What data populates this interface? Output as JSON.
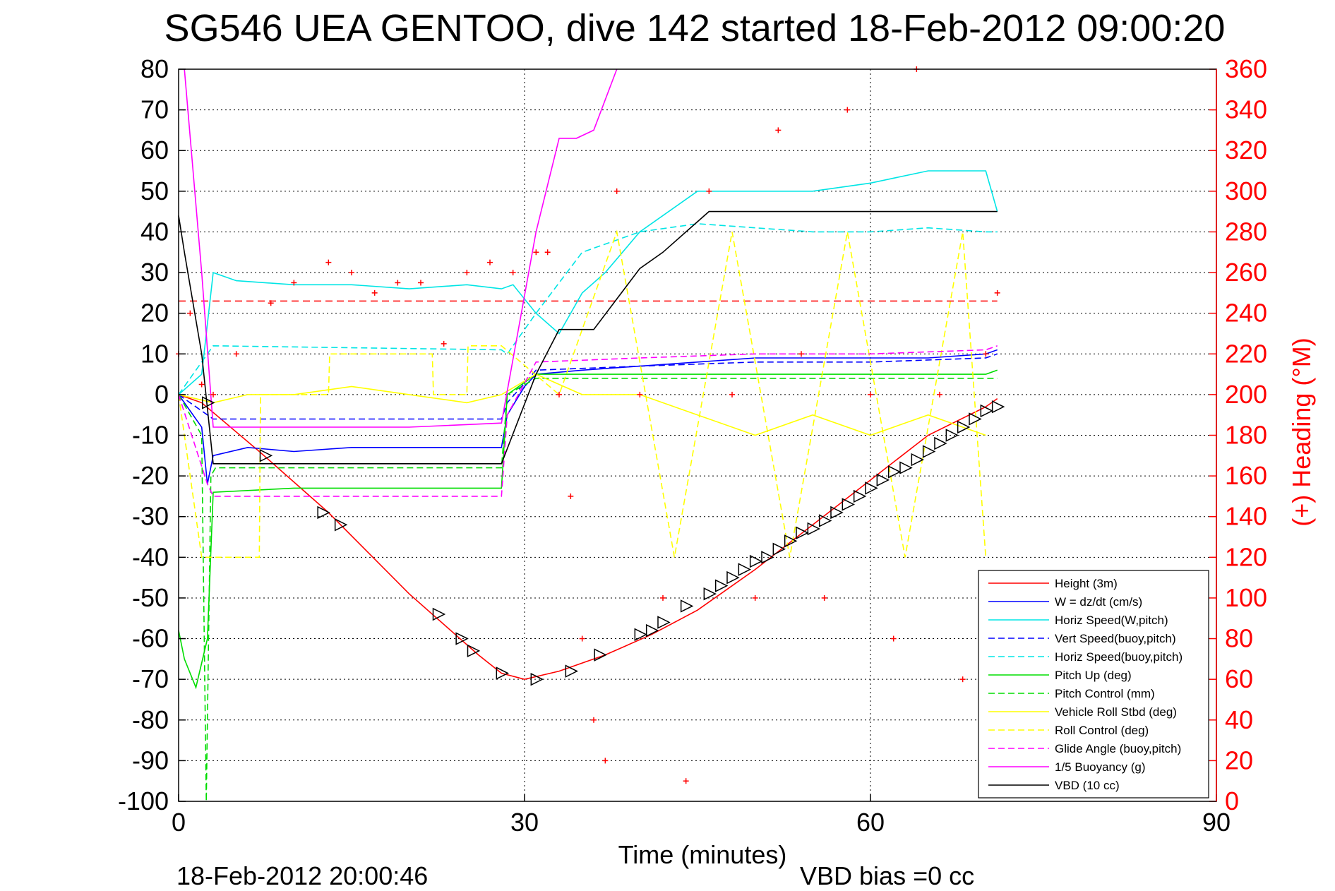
{
  "chart_data": {
    "type": "line",
    "title": "SG546 UEA GENTOO, dive 142 started 18-Feb-2012 09:00:20",
    "xlabel": "Time (minutes)",
    "ylabel_right": "(+) Heading (°M)",
    "xlim": [
      0,
      90
    ],
    "ylim": [
      -100,
      80
    ],
    "ylim_right": [
      0,
      360
    ],
    "x_ticks": [
      "0",
      "30",
      "60",
      "90"
    ],
    "y_ticks": [
      "80",
      "70",
      "60",
      "50",
      "40",
      "30",
      "20",
      "10",
      "0",
      "-10",
      "-20",
      "-30",
      "-40",
      "-50",
      "-60",
      "-70",
      "-80",
      "-90",
      "-100"
    ],
    "y_ticks_right": [
      "360",
      "340",
      "320",
      "300",
      "280",
      "260",
      "240",
      "220",
      "200",
      "180",
      "160",
      "140",
      "120",
      "100",
      "80",
      "60",
      "40",
      "20",
      "0"
    ],
    "grid": true,
    "legend_position": "bottom-right",
    "footer_left": "18-Feb-2012 20:00:46",
    "footer_right": "VBD bias =0 cc",
    "series": [
      {
        "name": "Height (3m)",
        "color": "#ff0000",
        "style": "solid",
        "x": [
          0,
          2,
          7,
          13,
          20,
          26,
          28,
          30,
          33,
          37,
          41,
          45,
          50,
          55,
          60,
          65,
          70,
          71
        ],
        "y": [
          0,
          -2,
          -14,
          -29,
          -49,
          -64,
          -68.5,
          -70,
          -68,
          -64,
          -59,
          -53,
          -43,
          -32,
          -21,
          -10,
          -3,
          -1
        ]
      },
      {
        "name": "W = dz/dt (cm/s)",
        "color": "#0000ff",
        "style": "solid",
        "x": [
          0,
          2,
          2.5,
          3,
          6,
          10,
          15,
          20,
          25,
          28,
          28.5,
          30,
          31,
          35,
          40,
          45,
          50,
          55,
          60,
          65,
          70,
          71
        ],
        "y": [
          0,
          -8,
          -22,
          -15,
          -13,
          -14,
          -13,
          -13,
          -13,
          -13,
          -5,
          2,
          5,
          6,
          7,
          8,
          9,
          9,
          9,
          9,
          10,
          11
        ]
      },
      {
        "name": "Horiz Speed(W,pitch)",
        "color": "#00e5e5",
        "style": "solid",
        "x": [
          0,
          2,
          3,
          5,
          10,
          15,
          20,
          25,
          28,
          29,
          31,
          33,
          35,
          37,
          40,
          45,
          50,
          55,
          60,
          65,
          70,
          71
        ],
        "y": [
          0,
          5,
          30,
          28,
          27,
          27,
          26,
          27,
          26,
          27,
          20,
          15,
          25,
          30,
          40,
          50,
          50,
          50,
          52,
          55,
          55,
          45
        ]
      },
      {
        "name": "Vert Speed(buoy,pitch)",
        "color": "#0000ff",
        "style": "dashed",
        "x": [
          0,
          2.5,
          3,
          28,
          28.5,
          31,
          40,
          50,
          60,
          70,
          71
        ],
        "y": [
          0,
          -5,
          -6,
          -6,
          -2,
          6,
          7,
          8,
          8,
          9,
          10
        ]
      },
      {
        "name": "Horiz Speed(buoy,pitch)",
        "color": "#00e5e5",
        "style": "dashed",
        "x": [
          0,
          2.5,
          3,
          28,
          28.5,
          31,
          35,
          40,
          45,
          50,
          55,
          60,
          65,
          70,
          71
        ],
        "y": [
          0,
          10,
          12,
          11,
          10,
          20,
          35,
          40,
          42,
          41,
          40,
          40,
          41,
          40,
          40
        ]
      },
      {
        "name": "Pitch Up (deg)",
        "color": "#00dd00",
        "style": "solid",
        "x": [
          0,
          0.5,
          1.5,
          2.5,
          3,
          10,
          20,
          28,
          28.5,
          31,
          40,
          50,
          60,
          70,
          71
        ],
        "y": [
          -58,
          -65,
          -72,
          -60,
          -24,
          -23,
          -23,
          -23,
          0,
          5,
          5,
          5,
          5,
          5,
          6
        ]
      },
      {
        "name": "Pitch Control (mm)",
        "color": "#00dd00",
        "style": "dashed",
        "x": [
          0,
          2,
          2.4,
          2.8,
          3.2,
          28,
          28.5,
          31,
          71
        ],
        "y": [
          0,
          -10,
          -100,
          -20,
          -18,
          -18,
          0,
          4,
          4
        ]
      },
      {
        "name": "Vehicle Roll Stbd (deg)",
        "color": "#ffff00",
        "style": "solid",
        "x": [
          0,
          3,
          6,
          10,
          15,
          20,
          25,
          28,
          31,
          35,
          40,
          45,
          50,
          55,
          60,
          65,
          70
        ],
        "y": [
          0,
          -2,
          0,
          0,
          2,
          0,
          -2,
          0,
          5,
          0,
          0,
          -5,
          -10,
          -5,
          -10,
          -5,
          -10
        ]
      },
      {
        "name": "Roll Control (deg)",
        "color": "#ffff00",
        "style": "dashed",
        "x": [
          0,
          2,
          3,
          7,
          7.1,
          13,
          13.1,
          22,
          22.1,
          25,
          25.1,
          28,
          33,
          38,
          43,
          48,
          53,
          58,
          63,
          68,
          70
        ],
        "y": [
          0,
          -40,
          -40,
          -40,
          0,
          0,
          10,
          10,
          0,
          0,
          12,
          12,
          0,
          40,
          -40,
          40,
          -40,
          40,
          -40,
          40,
          -40
        ]
      },
      {
        "name": "Glide Angle (buoy,pitch)",
        "color": "#ff00ff",
        "style": "dashed",
        "x": [
          0,
          2.5,
          3,
          28,
          28.5,
          31,
          40,
          50,
          60,
          70,
          71
        ],
        "y": [
          0,
          -22,
          -25,
          -25,
          -5,
          8,
          9,
          10,
          10,
          11,
          12
        ]
      },
      {
        "name": "1/5 Buoyancy (g)",
        "color": "#ff00ff",
        "style": "solid",
        "x": [
          0.5,
          2,
          3,
          10,
          20,
          28,
          31,
          33,
          34.5,
          36,
          38
        ],
        "y": [
          80,
          30,
          -8,
          -8,
          -8,
          -7,
          40,
          63,
          63,
          65,
          80
        ]
      },
      {
        "name": "VBD (10 cc)",
        "color": "#000000",
        "style": "solid",
        "x": [
          0,
          0.5,
          2,
          3,
          15,
          28,
          31,
          33,
          36,
          40,
          42,
          44,
          46,
          71
        ],
        "y": [
          44,
          35,
          10,
          -17,
          -17,
          -17,
          5,
          16,
          16,
          31,
          35,
          40,
          45,
          45
        ]
      }
    ],
    "reference_line": {
      "name": "",
      "color": "#ff0000",
      "style": "dashed",
      "y": 23
    },
    "heading_plus": {
      "color": "#ff0000",
      "axis": "right",
      "x": [
        0,
        1,
        2,
        3,
        5,
        8,
        10,
        13,
        15,
        17,
        19,
        21,
        23,
        25,
        27,
        29,
        31,
        32,
        33,
        34,
        35,
        36,
        37,
        38,
        40,
        42,
        44,
        46,
        48,
        50,
        52,
        54,
        56,
        58,
        60,
        62,
        64,
        66,
        68,
        70,
        71
      ],
      "y": [
        220,
        240,
        205,
        200,
        220,
        245,
        255,
        265,
        260,
        250,
        255,
        255,
        225,
        260,
        265,
        260,
        270,
        270,
        200,
        150,
        80,
        40,
        20,
        300,
        200,
        100,
        10,
        300,
        200,
        100,
        330,
        220,
        100,
        340,
        200,
        80,
        360,
        200,
        60,
        220,
        250
      ]
    },
    "markers": {
      "shape": "triangle",
      "x": [
        2.5,
        7.5,
        12.5,
        14,
        22.5,
        24.5,
        25.5,
        28,
        31,
        34,
        36.5,
        40,
        41,
        42,
        44,
        46,
        47,
        48,
        49,
        50,
        51,
        52,
        53,
        54,
        55,
        56,
        57,
        58,
        59,
        60,
        61,
        62,
        63,
        64,
        65,
        66,
        67,
        68,
        69,
        70,
        71
      ],
      "y": [
        -2,
        -15,
        -29,
        -32,
        -54,
        -60,
        -63,
        -68.5,
        -70,
        -68,
        -64,
        -59,
        -58,
        -56,
        -52,
        -49,
        -47,
        -45,
        -43,
        -41,
        -40,
        -38,
        -36,
        -34,
        -33,
        -31,
        -29,
        -27,
        -25,
        -23,
        -21,
        -19,
        -18,
        -16,
        -14,
        -12,
        -10,
        -8,
        -6,
        -4,
        -3
      ]
    }
  }
}
